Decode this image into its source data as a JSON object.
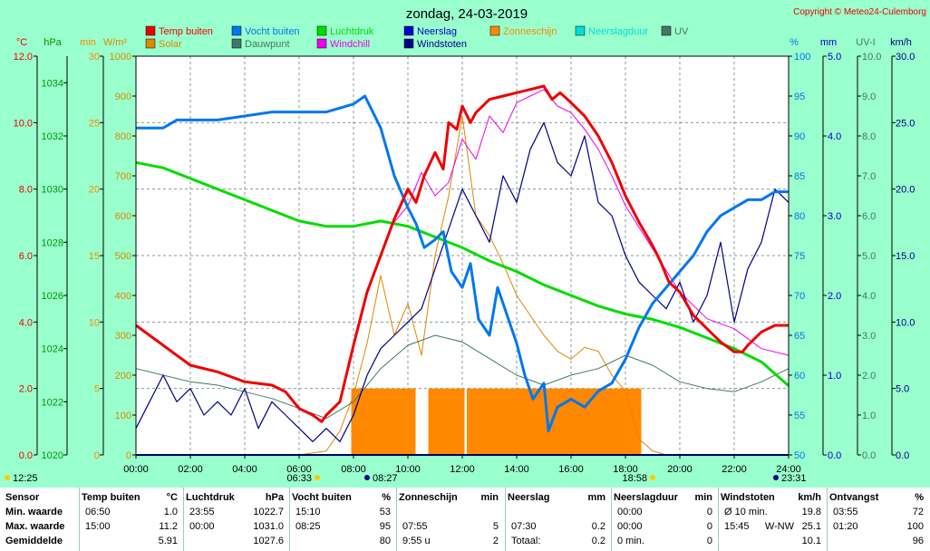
{
  "title": "zondag, 24-03-2019",
  "copyright": "Copyright © Meteo24-Culemborg",
  "colors": {
    "temp": "#ee0000",
    "humidity": "#0077ee",
    "pressure": "#00dd00",
    "rain": "#0000cc",
    "sunshine": "#ff8800",
    "rainduration": "#00dddd",
    "uv": "#447766",
    "solar": "#dd8800",
    "dewpoint": "#447766",
    "windchill": "#ee00ee",
    "gusts": "#000088",
    "background": "#99ffcc",
    "plot": "#ffffff"
  },
  "axis_units": {
    "temp": "°C",
    "pressure": "hPa",
    "sun_min": "min",
    "solar": "W/m²",
    "humidity": "%",
    "rain": "mm",
    "uv": "UV-I",
    "wind": "km/h"
  },
  "chart_data": {
    "type": "line",
    "title": "zondag, 24-03-2019",
    "x_range_hours": [
      0,
      24
    ],
    "x_tick_labels": [
      "00:00",
      "02:00",
      "04:00",
      "06:00",
      "08:00",
      "10:00",
      "12:00",
      "14:00",
      "16:00",
      "18:00",
      "20:00",
      "22:00",
      "24:00"
    ],
    "y_axes": {
      "temp": {
        "unit": "°C",
        "range": [
          0,
          12
        ],
        "ticks": [
          "0.0",
          "2.0",
          "4.0",
          "6.0",
          "8.0",
          "10.0",
          "12.0"
        ]
      },
      "pressure": {
        "unit": "hPa",
        "range": [
          1020,
          1035
        ],
        "ticks": [
          "1020",
          "1022",
          "1024",
          "1026",
          "1028",
          "1030",
          "1032",
          "1034"
        ]
      },
      "sun_min": {
        "unit": "min",
        "range": [
          0,
          30
        ],
        "ticks": [
          "0",
          "5",
          "10",
          "15",
          "20",
          "25",
          "30"
        ]
      },
      "solar": {
        "unit": "W/m²",
        "range": [
          0,
          1000
        ],
        "ticks": [
          "0",
          "100",
          "200",
          "300",
          "400",
          "500",
          "600",
          "700",
          "800",
          "900",
          "1000"
        ]
      },
      "humidity": {
        "unit": "%",
        "range": [
          50,
          100
        ],
        "ticks": [
          "50",
          "55",
          "60",
          "65",
          "70",
          "75",
          "80",
          "85",
          "90",
          "95",
          "100"
        ]
      },
      "rain": {
        "unit": "mm",
        "range": [
          0,
          5
        ],
        "ticks": [
          "0.0",
          "1.0",
          "2.0",
          "3.0",
          "4.0",
          "5.0"
        ]
      },
      "uv": {
        "unit": "UV-I",
        "range": [
          0,
          10
        ],
        "ticks": [
          "0.0",
          "1.0",
          "2.0",
          "3.0",
          "4.0",
          "5.0",
          "6.0",
          "7.0",
          "8.0",
          "9.0",
          "10.0"
        ]
      },
      "wind": {
        "unit": "km/h",
        "range": [
          0,
          30
        ],
        "ticks": [
          "0.0",
          "5.0",
          "10.0",
          "15.0",
          "20.0",
          "25.0",
          "30.0"
        ]
      }
    },
    "legend": [
      {
        "label": "Temp buiten",
        "key": "temp"
      },
      {
        "label": "Vocht buiten",
        "key": "humidity"
      },
      {
        "label": "Luchtdruk",
        "key": "pressure"
      },
      {
        "label": "Neerslag",
        "key": "rain"
      },
      {
        "label": "Zonneschijn",
        "key": "sunshine"
      },
      {
        "label": "Neerslagduur",
        "key": "rainduration"
      },
      {
        "label": "UV",
        "key": "uv"
      },
      {
        "label": "Solar",
        "key": "solar"
      },
      {
        "label": "Dauwpunt",
        "key": "dewpoint"
      },
      {
        "label": "Windchill",
        "key": "windchill"
      },
      {
        "label": "Windstoten",
        "key": "gusts"
      }
    ],
    "series": [
      {
        "name": "Temp buiten",
        "key": "temp",
        "axis": "temp",
        "x": [
          0,
          0.5,
          1,
          2,
          3,
          4,
          5,
          5.5,
          6,
          6.5,
          6.83,
          7,
          7.5,
          8,
          8.5,
          9,
          9.5,
          10,
          10.3,
          10.6,
          11,
          11.3,
          11.5,
          11.8,
          12,
          12.3,
          12.5,
          13,
          13.5,
          14,
          14.5,
          15,
          15.3,
          15.6,
          16,
          16.5,
          17,
          17.5,
          18,
          18.5,
          19,
          19.3,
          19.6,
          20,
          20.5,
          21,
          21.5,
          22,
          22.3,
          22.5,
          23,
          23.5,
          24
        ],
        "values": [
          3.9,
          3.6,
          3.3,
          2.7,
          2.5,
          2.2,
          2.1,
          1.9,
          1.4,
          1.2,
          1.0,
          1.2,
          1.6,
          3.3,
          4.9,
          6.0,
          7.1,
          8.0,
          7.6,
          8.4,
          9.1,
          8.6,
          10.0,
          9.8,
          10.5,
          10.0,
          10.3,
          10.7,
          10.8,
          10.9,
          11.0,
          11.1,
          10.7,
          10.9,
          10.6,
          10.2,
          9.6,
          8.8,
          7.8,
          7.0,
          6.3,
          5.8,
          5.2,
          4.9,
          4.2,
          3.8,
          3.4,
          3.1,
          3.1,
          3.3,
          3.7,
          3.9,
          3.9
        ]
      },
      {
        "name": "Vocht buiten",
        "key": "humidity",
        "axis": "humidity",
        "x": [
          0,
          1,
          1.5,
          2,
          3,
          4,
          5,
          6,
          7,
          8,
          8.42,
          9,
          9.5,
          10,
          10.3,
          10.6,
          11,
          11.3,
          11.6,
          12,
          12.3,
          12.6,
          13,
          13.3,
          13.6,
          14,
          14.3,
          14.6,
          15,
          15.17,
          15.5,
          16,
          16.5,
          17,
          17.5,
          18,
          18.5,
          19,
          19.5,
          20,
          20.5,
          21,
          21.5,
          22,
          22.5,
          23,
          23.5,
          24
        ],
        "values": [
          91,
          91,
          92,
          92,
          92,
          92.5,
          93,
          93,
          93,
          94,
          95,
          91,
          85,
          81,
          79,
          76,
          77,
          78,
          73,
          71,
          74,
          67,
          65,
          71,
          68,
          64,
          60,
          57,
          59,
          53,
          56,
          57,
          56,
          58,
          59,
          62,
          66,
          69,
          71,
          73,
          75,
          78,
          80,
          81,
          82,
          82,
          83,
          83
        ]
      },
      {
        "name": "Luchtdruk",
        "key": "pressure",
        "axis": "pressure",
        "x": [
          0,
          1,
          2,
          3,
          4,
          5,
          6,
          7,
          8,
          9,
          10,
          11,
          12,
          13,
          14,
          15,
          16,
          17,
          18,
          19,
          20,
          21,
          22,
          23,
          24
        ],
        "values": [
          1031.0,
          1030.8,
          1030.4,
          1030.0,
          1029.6,
          1029.2,
          1028.8,
          1028.6,
          1028.6,
          1028.8,
          1028.6,
          1028.2,
          1027.8,
          1027.3,
          1026.9,
          1026.4,
          1026.0,
          1025.6,
          1025.3,
          1025.1,
          1024.8,
          1024.4,
          1024.0,
          1023.5,
          1022.6
        ]
      },
      {
        "name": "Solar",
        "key": "solar",
        "axis": "solar",
        "x": [
          0,
          6,
          7,
          7.5,
          8,
          8.5,
          9,
          9.5,
          10,
          10.5,
          11,
          11.5,
          12,
          12.5,
          13,
          13.5,
          14,
          14.5,
          15,
          15.5,
          16,
          16.5,
          17,
          17.5,
          18,
          18.5,
          19,
          19.5,
          20,
          24
        ],
        "values": [
          0,
          0,
          10,
          60,
          150,
          280,
          450,
          300,
          380,
          250,
          500,
          650,
          850,
          600,
          550,
          480,
          400,
          350,
          300,
          260,
          240,
          270,
          260,
          200,
          160,
          40,
          10,
          0,
          0,
          0
        ]
      },
      {
        "name": "Dauwpunt",
        "key": "dewpoint",
        "axis": "temp",
        "x": [
          0,
          1,
          2,
          3,
          4,
          5,
          6,
          7,
          8,
          9,
          10,
          11,
          12,
          13,
          14,
          15,
          16,
          17,
          18,
          19,
          20,
          21,
          22,
          23,
          24
        ],
        "values": [
          2.6,
          2.4,
          2.2,
          2.1,
          1.9,
          1.7,
          1.4,
          1.1,
          1.6,
          2.6,
          3.3,
          3.6,
          3.4,
          2.9,
          2.4,
          2.1,
          2.4,
          2.6,
          3.0,
          2.7,
          2.2,
          2.0,
          1.9,
          2.2,
          2.6
        ]
      },
      {
        "name": "Windchill",
        "key": "windchill",
        "axis": "temp",
        "x": [
          9.5,
          10,
          10.5,
          11,
          11.5,
          12,
          12.5,
          13,
          13.5,
          14,
          14.5,
          15,
          15.5,
          16,
          16.5,
          17,
          17.5,
          18,
          19,
          20,
          21,
          22,
          23,
          24
        ],
        "values": [
          7.0,
          7.5,
          8.5,
          7.8,
          8.2,
          9.5,
          8.9,
          10.2,
          9.7,
          10.6,
          10.8,
          11.0,
          10.5,
          10.3,
          9.8,
          9.2,
          8.4,
          7.5,
          6.2,
          4.9,
          4.1,
          3.8,
          3.2,
          3.0
        ]
      },
      {
        "name": "Windstoten",
        "key": "gusts",
        "axis": "wind",
        "x": [
          0,
          0.5,
          1,
          1.5,
          2,
          2.5,
          3,
          3.5,
          4,
          4.5,
          5,
          5.5,
          6,
          6.5,
          7,
          7.5,
          8,
          8.5,
          9,
          9.5,
          10,
          10.5,
          11,
          11.5,
          12,
          12.5,
          13,
          13.5,
          14,
          14.5,
          15,
          15.5,
          16,
          16.5,
          17,
          17.5,
          18,
          18.5,
          19,
          19.5,
          20,
          20.5,
          21,
          21.5,
          22,
          22.5,
          23,
          23.5,
          24
        ],
        "values": [
          2.0,
          4.0,
          6.0,
          4.0,
          5.0,
          3.0,
          4.0,
          3.0,
          5.0,
          2.0,
          4.0,
          3.0,
          2.0,
          1.0,
          2.0,
          1.0,
          3.0,
          6.0,
          8.0,
          9.0,
          10.0,
          11.0,
          14.0,
          17.0,
          20.0,
          18.0,
          16.0,
          21.0,
          19.0,
          23.0,
          25.0,
          22.0,
          21.0,
          24.0,
          19.0,
          18.0,
          15.0,
          13.0,
          12.0,
          11.0,
          13.0,
          10.0,
          12.0,
          16.0,
          10.0,
          14.0,
          16.0,
          20.0,
          19.0
        ]
      },
      {
        "name": "Neerslag",
        "key": "rain",
        "axis": "rain",
        "x": [
          0,
          24
        ],
        "values": [
          0,
          0
        ]
      },
      {
        "name": "UV",
        "key": "uv",
        "axis": "uv",
        "x": [
          0,
          24
        ],
        "values": [
          0,
          0
        ]
      }
    ],
    "sunshine_bars": [
      {
        "from": "07:55",
        "to": "10:17",
        "minutes": 5
      },
      {
        "from": "10:45",
        "to": "12:05",
        "minutes": 5
      },
      {
        "from": "12:10",
        "to": "18:35",
        "minutes": 5
      }
    ],
    "time_markers": [
      {
        "label": "12:25"
      },
      {
        "label": "06:33"
      },
      {
        "label": "08:27"
      },
      {
        "label": "18:58"
      },
      {
        "label": "23:31"
      }
    ]
  },
  "stats": {
    "row_labels": [
      "Sensor",
      "Min. waarde",
      "Max. waarde",
      "Gemiddelde"
    ],
    "columns": [
      {
        "header": "Temp buiten",
        "unit": "°C",
        "min_time": "06:50",
        "min_val": "1.0",
        "max_time": "15:00",
        "max_val": "11.2",
        "avg_time": "",
        "avg_val": "5.91"
      },
      {
        "header": "Luchtdruk",
        "unit": "hPa",
        "min_time": "23:55",
        "min_val": "1022.7",
        "max_time": "00:00",
        "max_val": "1031.0",
        "avg_time": "",
        "avg_val": "1027.6"
      },
      {
        "header": "Vocht buiten",
        "unit": "%",
        "min_time": "15:10",
        "min_val": "53",
        "max_time": "08:25",
        "max_val": "95",
        "avg_time": "",
        "avg_val": "80"
      },
      {
        "header": "Zonneschijn",
        "unit": "min",
        "min_time": "",
        "min_val": "",
        "max_time": "07:55",
        "max_val": "5",
        "avg_time": "9:55 u",
        "avg_val": "2"
      },
      {
        "header": "Neerslag",
        "unit": "mm",
        "min_time": "",
        "min_val": "",
        "max_time": "07:30",
        "max_val": "0.2",
        "avg_time": "Totaal:",
        "avg_val": "0.2"
      },
      {
        "header": "Neerslagduur",
        "unit": "min",
        "min_time": "00:00",
        "min_val": "0",
        "max_time": "00:00",
        "max_val": "0",
        "avg_time": "0 min.",
        "avg_val": "0"
      },
      {
        "header": "Windstoten",
        "unit": "km/h",
        "min_time": "Ø 10 min.",
        "min_val": "19.8",
        "max_time": "15:45",
        "max_dir": "W-NW",
        "max_val": "25.1",
        "avg_time": "",
        "avg_val": "10.1"
      },
      {
        "header": "Ontvangst",
        "unit": "%",
        "min_time": "03:55",
        "min_val": "72",
        "max_time": "01:20",
        "max_val": "100",
        "avg_time": "",
        "avg_val": "96"
      }
    ]
  }
}
